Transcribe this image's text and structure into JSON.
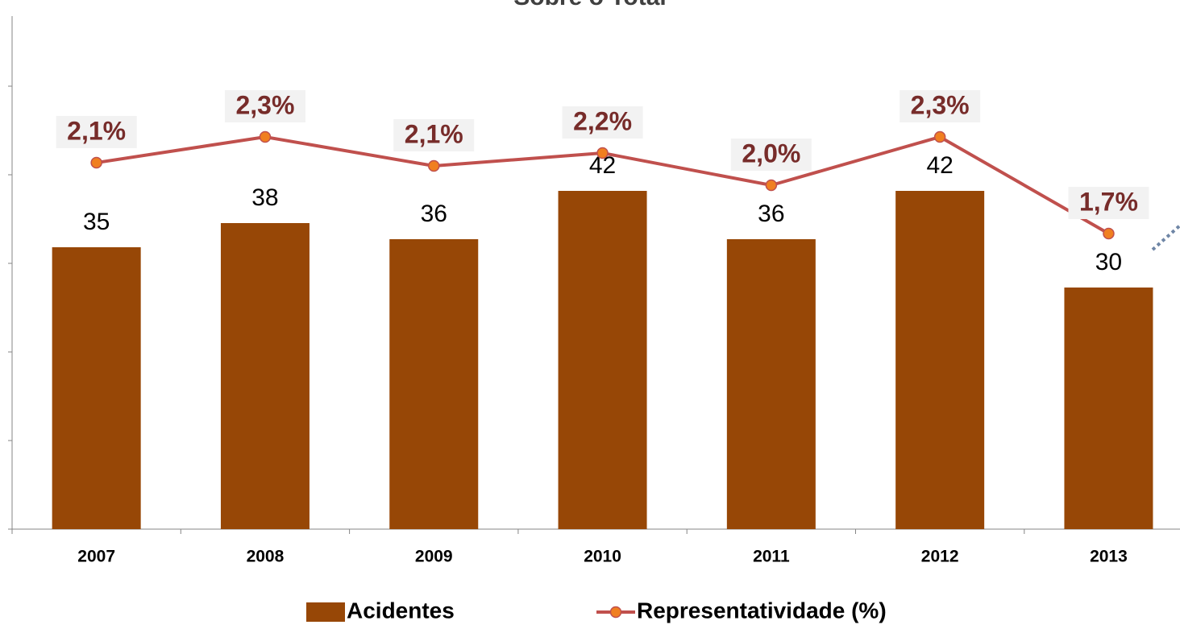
{
  "chart_data": {
    "type": "bar",
    "title": "Sobre o Total",
    "categories": [
      "2007",
      "2008",
      "2009",
      "2010",
      "2011",
      "2012",
      "2013"
    ],
    "series": [
      {
        "name": "Acidentes",
        "type": "bar",
        "color": "#974706",
        "values": [
          35,
          38,
          36,
          42,
          36,
          42,
          30
        ]
      },
      {
        "name": "Representatividade (%)",
        "type": "line",
        "axis": "y2",
        "color": "#c0504d",
        "marker_color": "#f07f20",
        "values": [
          2.14,
          2.3,
          2.12,
          2.2,
          2.0,
          2.3,
          1.7
        ],
        "value_labels": [
          "2,1%",
          "2,3%",
          "2,1%",
          "2,2%",
          "2,0%",
          "2,3%",
          "1,7%"
        ]
      }
    ],
    "ylim": [
      0,
      63.7
    ],
    "yticks": [
      0,
      11,
      22,
      33,
      44,
      55
    ],
    "y2lim": [
      -0.135,
      3.05
    ],
    "legend": "bottom"
  }
}
